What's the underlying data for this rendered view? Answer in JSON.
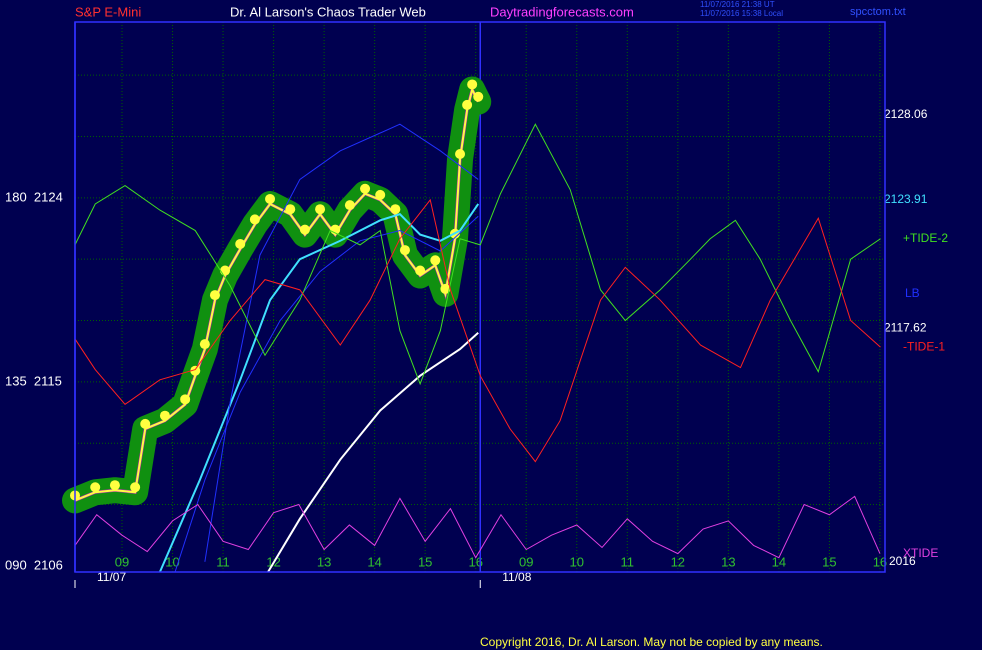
{
  "header": {
    "left": "S&P E-Mini",
    "title": "Dr. Al Larson's Chaos Trader Web",
    "site": "Daytradingforecasts.com",
    "stamp_ut": "11/07/2016 21:38 UT",
    "stamp_local": "11/07/2016 15:38 Local",
    "file": "spcctom.txt"
  },
  "footer": "Copyright 2016, Dr. Al Larson. May not be copied by any means.",
  "chart_data": {
    "type": "line",
    "xlim": [
      -0.93,
      15.1
    ],
    "ylim": [
      2105.7,
      2132.6
    ],
    "xticks": [
      {
        "value": 0,
        "label": "09"
      },
      {
        "value": 1,
        "label": "10"
      },
      {
        "value": 2,
        "label": "11"
      },
      {
        "value": 3,
        "label": "12"
      },
      {
        "value": 4,
        "label": "13"
      },
      {
        "value": 5,
        "label": "14"
      },
      {
        "value": 6,
        "label": "15"
      },
      {
        "value": 7,
        "label": "16"
      },
      {
        "value": 8,
        "label": "09"
      },
      {
        "value": 9,
        "label": "10"
      },
      {
        "value": 10,
        "label": "11"
      },
      {
        "value": 11,
        "label": "12"
      },
      {
        "value": 12,
        "label": "13"
      },
      {
        "value": 13,
        "label": "14"
      },
      {
        "value": 14,
        "label": "15"
      },
      {
        "value": 15,
        "label": "16"
      }
    ],
    "dates": [
      {
        "value": -0.93,
        "label": "11/07"
      },
      {
        "value": 7.09,
        "label": "11/08"
      }
    ],
    "yticks": [
      {
        "value": 2124,
        "label": "180  2124"
      },
      {
        "value": 2115,
        "label": "135  2115"
      },
      {
        "value": 2106,
        "label": "090  2106"
      }
    ],
    "ygrid": [
      2109,
      2112,
      2115,
      2118,
      2121,
      2124,
      2127,
      2130
    ],
    "grid": true,
    "year": "2016",
    "levels": [
      {
        "value": 2128.06,
        "color": "#ffffff"
      },
      {
        "value": 2123.91,
        "color": "#40e0ff"
      },
      {
        "value": 2117.62,
        "color": "#ffffff"
      }
    ],
    "series": [
      {
        "color": "#ffff40",
        "x": [
          -0.93,
          -0.53,
          -0.14,
          0.26,
          0.46,
          0.85,
          1.25,
          1.45,
          1.64,
          1.84,
          2.04,
          2.34,
          2.63,
          2.93,
          3.33,
          3.62,
          3.92,
          4.22,
          4.51,
          4.81,
          5.11,
          5.41,
          5.6,
          5.9,
          6.2,
          6.4,
          6.59,
          6.69,
          6.83,
          6.93,
          7.05
        ],
        "values": [
          2109.2,
          2109.6,
          2109.7,
          2109.6,
          2112.7,
          2113.1,
          2113.9,
          2115.3,
          2116.6,
          2119.0,
          2120.2,
          2121.5,
          2122.7,
          2123.7,
          2123.2,
          2122.2,
          2123.2,
          2122.2,
          2123.4,
          2124.2,
          2123.9,
          2123.2,
          2121.2,
          2120.2,
          2120.7,
          2119.3,
          2122.0,
          2125.9,
          2128.3,
          2129.3,
          2128.7
        ]
      },
      {
        "color": "#40e0ff",
        "x": [
          0.75,
          1.54,
          2.34,
          2.93,
          3.52,
          4.32,
          5.11,
          5.5,
          5.9,
          6.3,
          6.69,
          7.05
        ],
        "values": [
          2105.7,
          2110.2,
          2115.1,
          2119.0,
          2121.0,
          2121.9,
          2122.9,
          2123.2,
          2122.2,
          2121.9,
          2122.4,
          2123.7
        ]
      },
      {
        "color": "#ffffff",
        "x": [
          2.89,
          3.52,
          4.32,
          5.11,
          5.9,
          6.69,
          7.05
        ],
        "values": [
          2105.7,
          2108.3,
          2111.2,
          2113.6,
          2115.3,
          2116.6,
          2117.4
        ]
      },
      {
        "color": "#2030ff",
        "x": [
          1.05,
          1.64,
          2.34,
          3.13,
          3.92,
          4.71,
          5.5,
          6.3,
          7.05
        ],
        "values": [
          2105.7,
          2110.2,
          2114.5,
          2118.0,
          2120.4,
          2121.9,
          2122.4,
          2121.4,
          2123.1
        ]
      },
      {
        "color": "#2030ff",
        "x": [
          1.64,
          2.14,
          2.73,
          3.52,
          4.32,
          5.5,
          6.3,
          7.05
        ],
        "values": [
          2106.2,
          2114.0,
          2121.2,
          2124.9,
          2126.3,
          2127.6,
          2126.3,
          2124.9
        ]
      },
      {
        "name": "+TIDE-2",
        "color": "#40e020",
        "x": [
          -0.93,
          -0.53,
          0.06,
          0.75,
          1.45,
          2.14,
          2.83,
          3.52,
          4.12,
          4.71,
          5.11,
          5.5,
          5.9,
          6.3,
          6.69,
          7.09,
          7.49,
          8.18,
          8.87,
          9.47,
          9.96,
          10.65,
          11.25,
          11.64,
          12.14,
          12.63,
          13.23,
          13.78,
          14.42,
          15.01
        ],
        "values": [
          2121.7,
          2123.7,
          2124.6,
          2123.4,
          2122.4,
          2119.7,
          2116.3,
          2119.0,
          2122.4,
          2121.7,
          2122.4,
          2117.5,
          2114.9,
          2117.5,
          2122.0,
          2121.7,
          2124.2,
          2127.6,
          2124.4,
          2119.5,
          2118.0,
          2119.5,
          2121.0,
          2122.0,
          2122.9,
          2121.0,
          2118.0,
          2115.5,
          2121.0,
          2122.0
        ]
      },
      {
        "name": "LB",
        "color": "#2030ff",
        "x": [
          7.05
        ],
        "values": [
          2119.3
        ]
      },
      {
        "name": "-TIDE-1",
        "color": "#ff2020",
        "x": [
          -0.93,
          -0.53,
          0.06,
          0.75,
          1.45,
          2.14,
          2.83,
          3.52,
          4.32,
          4.91,
          5.5,
          6.1,
          6.5,
          7.09,
          7.68,
          8.18,
          8.67,
          9.47,
          9.96,
          10.65,
          11.45,
          12.24,
          12.83,
          13.78,
          14.42,
          15.01
        ],
        "values": [
          2117.1,
          2115.6,
          2113.9,
          2115.1,
          2115.6,
          2118.0,
          2120.0,
          2119.5,
          2116.8,
          2119.0,
          2122.0,
          2123.9,
          2119.5,
          2115.3,
          2112.7,
          2111.1,
          2113.1,
          2119.0,
          2120.6,
          2119.0,
          2116.8,
          2115.7,
          2119.0,
          2123.0,
          2118.0,
          2116.7
        ]
      },
      {
        "name": "XTIDE",
        "color": "#e040e0",
        "x": [
          -0.93,
          -0.5,
          0,
          0.5,
          1.0,
          1.5,
          2.0,
          2.5,
          3.0,
          3.5,
          4.0,
          4.5,
          5.0,
          5.5,
          6.0,
          6.5,
          7.0,
          7.5,
          8.0,
          8.5,
          9.0,
          9.5,
          10.0,
          10.5,
          11.0,
          11.5,
          12.0,
          12.5,
          13.0,
          13.5,
          14.0,
          14.5,
          15.0
        ],
        "values": [
          2107.0,
          2108.5,
          2107.5,
          2106.7,
          2108.2,
          2109.0,
          2107.2,
          2106.8,
          2108.6,
          2109.0,
          2106.8,
          2108.0,
          2107.0,
          2109.3,
          2107.2,
          2108.8,
          2106.4,
          2108.5,
          2106.8,
          2107.5,
          2108.0,
          2106.9,
          2108.3,
          2107.2,
          2106.6,
          2107.8,
          2108.2,
          2107.0,
          2106.4,
          2109.0,
          2108.5,
          2109.4,
          2106.6
        ]
      }
    ]
  }
}
